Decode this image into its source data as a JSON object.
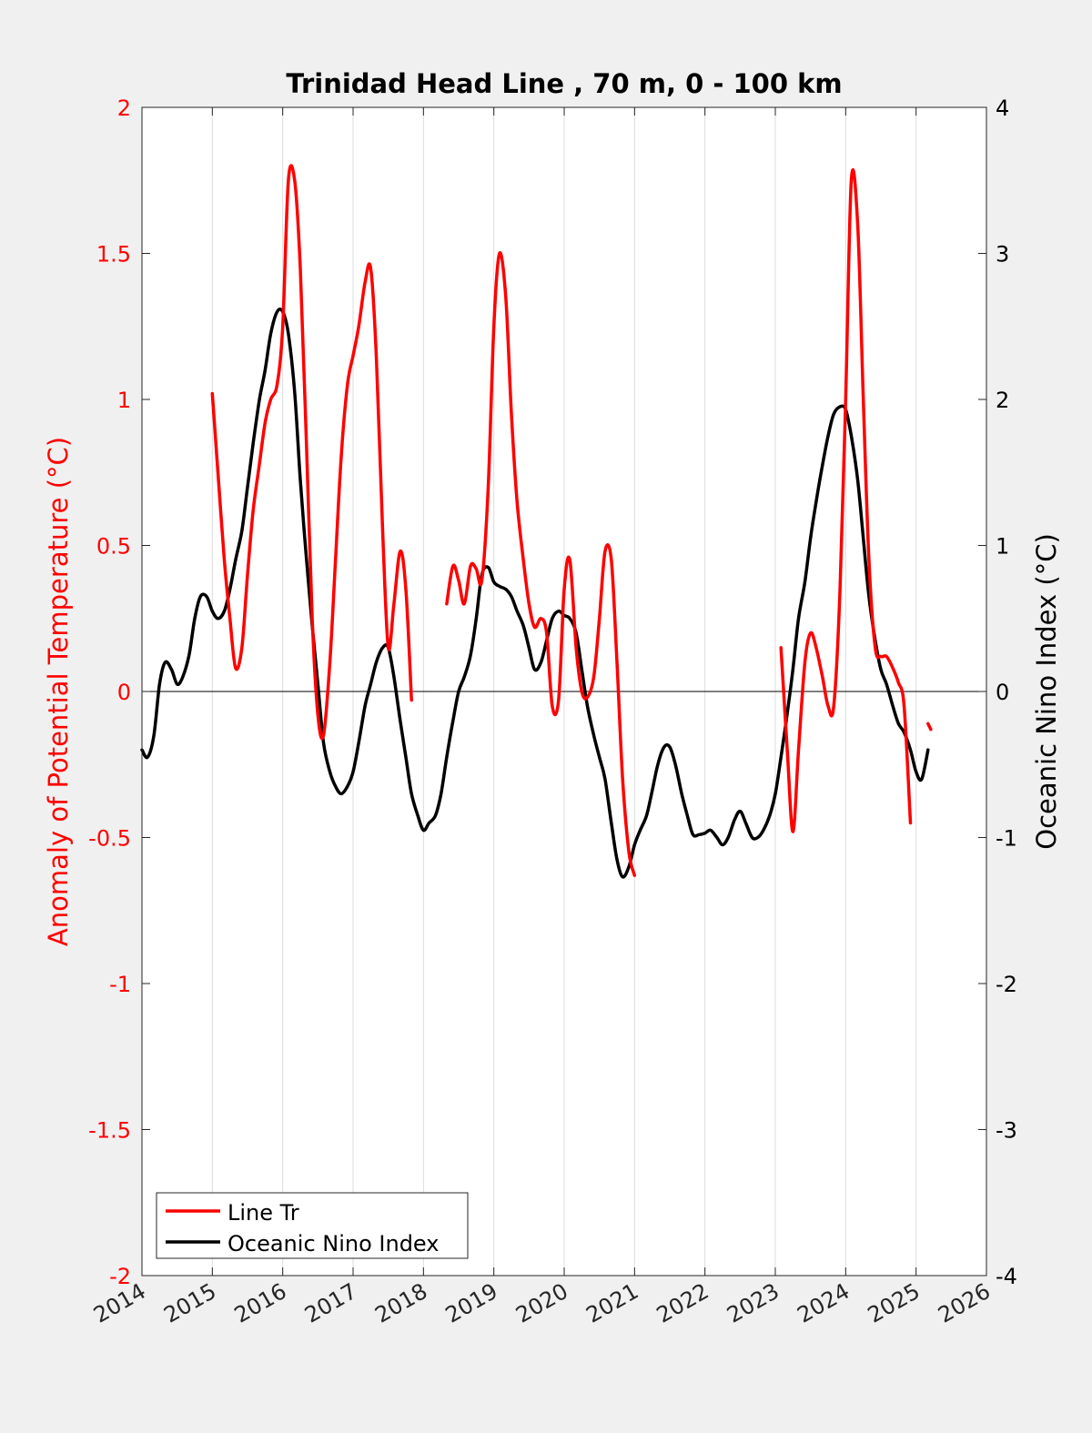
{
  "chart_data": {
    "type": "line",
    "title": "Trinidad Head Line , 70 m, 0 - 100 km",
    "xlim": [
      2014,
      2026
    ],
    "x_ticks": [
      "2014",
      "2015",
      "2016",
      "2017",
      "2018",
      "2019",
      "2020",
      "2021",
      "2022",
      "2023",
      "2024",
      "2025",
      "2026"
    ],
    "ylabel_left": "Anomaly of Potential Temperature (°C)",
    "ylim_left": [
      -2,
      2
    ],
    "y_ticks_left": [
      "2",
      "1.5",
      "1",
      "0.5",
      "0",
      "-0.5",
      "-1",
      "-1.5",
      "-2"
    ],
    "ylabel_right": "Oceanic Nino Index (°C)",
    "ylim_right": [
      -4,
      4
    ],
    "y_ticks_right": [
      "4",
      "3",
      "2",
      "1",
      "0",
      "-1",
      "-2",
      "-3",
      "-4"
    ],
    "grid": "vertical",
    "legend_position": "bottom-left",
    "colors": {
      "line_tr": "#ff0000",
      "oni": "#000000",
      "left_axis": "#ff0000",
      "right_axis": "#000000"
    },
    "series": [
      {
        "name": "Line Tr",
        "axis": "left",
        "segments": [
          [
            [
              2015.0,
              1.02
            ],
            [
              2015.08,
              0.75
            ],
            [
              2015.17,
              0.45
            ],
            [
              2015.25,
              0.25
            ],
            [
              2015.33,
              0.08
            ],
            [
              2015.42,
              0.15
            ],
            [
              2015.5,
              0.4
            ],
            [
              2015.58,
              0.62
            ],
            [
              2015.67,
              0.78
            ],
            [
              2015.75,
              0.92
            ],
            [
              2015.83,
              1.0
            ],
            [
              2015.92,
              1.05
            ],
            [
              2016.0,
              1.25
            ],
            [
              2016.08,
              1.75
            ],
            [
              2016.17,
              1.75
            ],
            [
              2016.25,
              1.45
            ],
            [
              2016.33,
              0.9
            ],
            [
              2016.42,
              0.25
            ],
            [
              2016.5,
              -0.08
            ],
            [
              2016.58,
              -0.15
            ],
            [
              2016.67,
              0.1
            ],
            [
              2016.75,
              0.45
            ],
            [
              2016.83,
              0.8
            ],
            [
              2016.92,
              1.05
            ],
            [
              2017.0,
              1.15
            ],
            [
              2017.08,
              1.25
            ],
            [
              2017.17,
              1.4
            ],
            [
              2017.25,
              1.45
            ],
            [
              2017.33,
              1.15
            ],
            [
              2017.42,
              0.55
            ],
            [
              2017.5,
              0.15
            ],
            [
              2017.58,
              0.3
            ],
            [
              2017.67,
              0.48
            ],
            [
              2017.75,
              0.35
            ],
            [
              2017.83,
              -0.03
            ]
          ],
          [
            [
              2018.33,
              0.3
            ],
            [
              2018.42,
              0.43
            ],
            [
              2018.5,
              0.38
            ],
            [
              2018.58,
              0.3
            ],
            [
              2018.67,
              0.43
            ],
            [
              2018.75,
              0.42
            ],
            [
              2018.83,
              0.38
            ],
            [
              2018.92,
              0.7
            ],
            [
              2019.0,
              1.25
            ],
            [
              2019.08,
              1.5
            ],
            [
              2019.17,
              1.35
            ],
            [
              2019.25,
              0.95
            ],
            [
              2019.33,
              0.65
            ],
            [
              2019.42,
              0.45
            ],
            [
              2019.5,
              0.3
            ],
            [
              2019.58,
              0.22
            ],
            [
              2019.67,
              0.25
            ],
            [
              2019.75,
              0.2
            ],
            [
              2019.83,
              -0.05
            ],
            [
              2019.92,
              -0.03
            ],
            [
              2020.0,
              0.35
            ],
            [
              2020.08,
              0.45
            ],
            [
              2020.17,
              0.15
            ],
            [
              2020.25,
              0.0
            ],
            [
              2020.33,
              -0.02
            ],
            [
              2020.42,
              0.05
            ],
            [
              2020.5,
              0.25
            ],
            [
              2020.58,
              0.48
            ],
            [
              2020.67,
              0.45
            ],
            [
              2020.75,
              0.1
            ],
            [
              2020.83,
              -0.3
            ],
            [
              2020.92,
              -0.55
            ],
            [
              2021.0,
              -0.63
            ]
          ],
          [
            [
              2023.08,
              0.15
            ],
            [
              2023.17,
              -0.2
            ],
            [
              2023.25,
              -0.48
            ],
            [
              2023.33,
              -0.2
            ],
            [
              2023.42,
              0.1
            ],
            [
              2023.5,
              0.2
            ],
            [
              2023.58,
              0.15
            ],
            [
              2023.67,
              0.05
            ],
            [
              2023.75,
              -0.05
            ],
            [
              2023.83,
              -0.05
            ],
            [
              2023.92,
              0.35
            ],
            [
              2024.0,
              1.0
            ],
            [
              2024.08,
              1.75
            ],
            [
              2024.17,
              1.6
            ],
            [
              2024.25,
              1.0
            ],
            [
              2024.33,
              0.45
            ],
            [
              2024.42,
              0.15
            ],
            [
              2024.5,
              0.12
            ],
            [
              2024.58,
              0.12
            ],
            [
              2024.67,
              0.08
            ],
            [
              2024.75,
              0.03
            ],
            [
              2024.83,
              -0.05
            ],
            [
              2024.92,
              -0.45
            ]
          ],
          [
            [
              2025.17,
              -0.11
            ],
            [
              2025.21,
              -0.13
            ]
          ]
        ]
      },
      {
        "name": "Oceanic Nino Index",
        "axis": "right",
        "values": [
          [
            2014.0,
            -0.4
          ],
          [
            2014.08,
            -0.45
          ],
          [
            2014.17,
            -0.3
          ],
          [
            2014.25,
            0.05
          ],
          [
            2014.33,
            0.2
          ],
          [
            2014.42,
            0.15
          ],
          [
            2014.5,
            0.05
          ],
          [
            2014.58,
            0.1
          ],
          [
            2014.67,
            0.25
          ],
          [
            2014.75,
            0.5
          ],
          [
            2014.83,
            0.65
          ],
          [
            2014.92,
            0.65
          ],
          [
            2015.0,
            0.55
          ],
          [
            2015.08,
            0.5
          ],
          [
            2015.17,
            0.55
          ],
          [
            2015.25,
            0.7
          ],
          [
            2015.33,
            0.9
          ],
          [
            2015.42,
            1.1
          ],
          [
            2015.5,
            1.4
          ],
          [
            2015.58,
            1.7
          ],
          [
            2015.67,
            2.0
          ],
          [
            2015.75,
            2.2
          ],
          [
            2015.83,
            2.45
          ],
          [
            2015.92,
            2.6
          ],
          [
            2016.0,
            2.6
          ],
          [
            2016.08,
            2.45
          ],
          [
            2016.17,
            2.05
          ],
          [
            2016.25,
            1.45
          ],
          [
            2016.33,
            0.95
          ],
          [
            2016.42,
            0.45
          ],
          [
            2016.5,
            0.05
          ],
          [
            2016.58,
            -0.35
          ],
          [
            2016.67,
            -0.55
          ],
          [
            2016.75,
            -0.65
          ],
          [
            2016.83,
            -0.7
          ],
          [
            2016.92,
            -0.65
          ],
          [
            2017.0,
            -0.55
          ],
          [
            2017.08,
            -0.35
          ],
          [
            2017.17,
            -0.1
          ],
          [
            2017.25,
            0.05
          ],
          [
            2017.33,
            0.2
          ],
          [
            2017.42,
            0.3
          ],
          [
            2017.5,
            0.3
          ],
          [
            2017.58,
            0.1
          ],
          [
            2017.67,
            -0.2
          ],
          [
            2017.75,
            -0.45
          ],
          [
            2017.83,
            -0.7
          ],
          [
            2017.92,
            -0.85
          ],
          [
            2018.0,
            -0.95
          ],
          [
            2018.08,
            -0.9
          ],
          [
            2018.17,
            -0.85
          ],
          [
            2018.25,
            -0.7
          ],
          [
            2018.33,
            -0.45
          ],
          [
            2018.42,
            -0.2
          ],
          [
            2018.5,
            0.0
          ],
          [
            2018.58,
            0.1
          ],
          [
            2018.67,
            0.25
          ],
          [
            2018.75,
            0.5
          ],
          [
            2018.83,
            0.8
          ],
          [
            2018.92,
            0.85
          ],
          [
            2019.0,
            0.75
          ],
          [
            2019.08,
            0.72
          ],
          [
            2019.17,
            0.7
          ],
          [
            2019.25,
            0.65
          ],
          [
            2019.33,
            0.55
          ],
          [
            2019.42,
            0.45
          ],
          [
            2019.5,
            0.3
          ],
          [
            2019.58,
            0.15
          ],
          [
            2019.67,
            0.2
          ],
          [
            2019.75,
            0.35
          ],
          [
            2019.83,
            0.5
          ],
          [
            2019.92,
            0.55
          ],
          [
            2020.0,
            0.52
          ],
          [
            2020.08,
            0.5
          ],
          [
            2020.17,
            0.4
          ],
          [
            2020.25,
            0.15
          ],
          [
            2020.33,
            -0.1
          ],
          [
            2020.42,
            -0.3
          ],
          [
            2020.5,
            -0.45
          ],
          [
            2020.58,
            -0.6
          ],
          [
            2020.67,
            -0.9
          ],
          [
            2020.75,
            -1.15
          ],
          [
            2020.83,
            -1.27
          ],
          [
            2020.92,
            -1.2
          ],
          [
            2021.0,
            -1.05
          ],
          [
            2021.08,
            -0.95
          ],
          [
            2021.17,
            -0.85
          ],
          [
            2021.25,
            -0.68
          ],
          [
            2021.33,
            -0.5
          ],
          [
            2021.42,
            -0.38
          ],
          [
            2021.5,
            -0.38
          ],
          [
            2021.58,
            -0.5
          ],
          [
            2021.67,
            -0.7
          ],
          [
            2021.75,
            -0.85
          ],
          [
            2021.83,
            -0.98
          ],
          [
            2021.92,
            -0.98
          ],
          [
            2022.0,
            -0.97
          ],
          [
            2022.08,
            -0.95
          ],
          [
            2022.17,
            -1.0
          ],
          [
            2022.25,
            -1.05
          ],
          [
            2022.33,
            -1.0
          ],
          [
            2022.42,
            -0.88
          ],
          [
            2022.5,
            -0.82
          ],
          [
            2022.58,
            -0.9
          ],
          [
            2022.67,
            -1.0
          ],
          [
            2022.75,
            -1.0
          ],
          [
            2022.83,
            -0.95
          ],
          [
            2022.92,
            -0.85
          ],
          [
            2023.0,
            -0.7
          ],
          [
            2023.08,
            -0.45
          ],
          [
            2023.17,
            -0.15
          ],
          [
            2023.25,
            0.15
          ],
          [
            2023.33,
            0.5
          ],
          [
            2023.42,
            0.75
          ],
          [
            2023.5,
            1.05
          ],
          [
            2023.58,
            1.3
          ],
          [
            2023.67,
            1.55
          ],
          [
            2023.75,
            1.75
          ],
          [
            2023.83,
            1.9
          ],
          [
            2023.92,
            1.95
          ],
          [
            2024.0,
            1.93
          ],
          [
            2024.08,
            1.75
          ],
          [
            2024.17,
            1.45
          ],
          [
            2024.25,
            1.05
          ],
          [
            2024.33,
            0.65
          ],
          [
            2024.42,
            0.35
          ],
          [
            2024.5,
            0.15
          ],
          [
            2024.58,
            0.05
          ],
          [
            2024.67,
            -0.1
          ],
          [
            2024.75,
            -0.22
          ],
          [
            2024.83,
            -0.28
          ],
          [
            2024.92,
            -0.4
          ],
          [
            2025.0,
            -0.55
          ],
          [
            2025.08,
            -0.6
          ],
          [
            2025.17,
            -0.4
          ]
        ]
      }
    ]
  }
}
